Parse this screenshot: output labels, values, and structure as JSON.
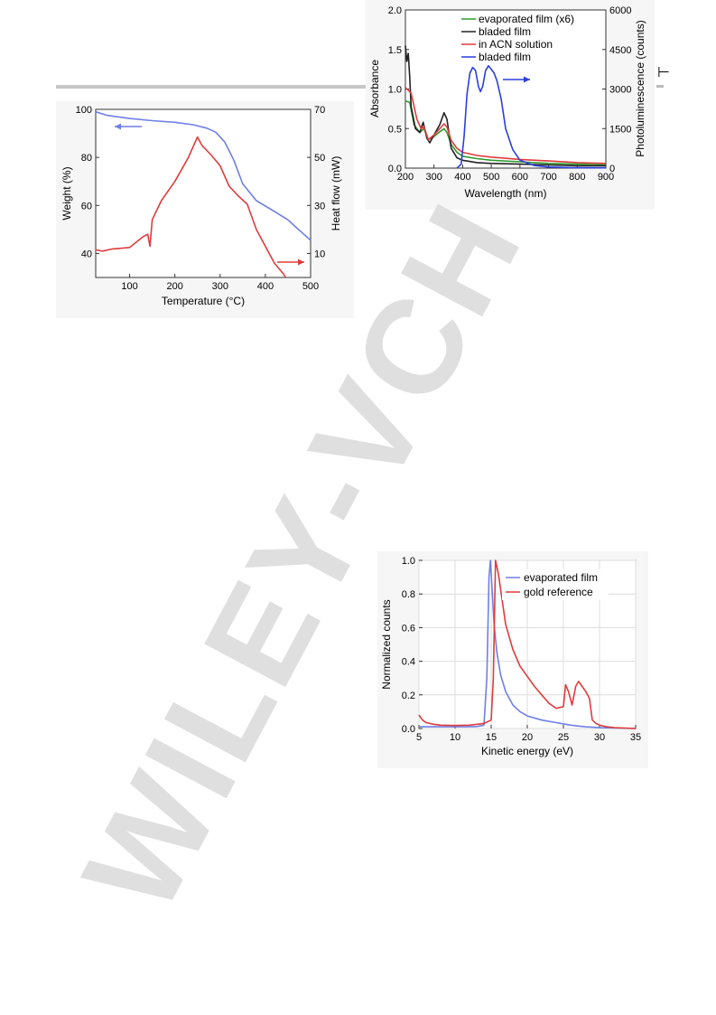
{
  "page": {
    "right_mark": "⊢"
  },
  "watermark": {
    "text": "WILEY-VCH",
    "color": "#d9d9d9"
  },
  "chart_data": [
    {
      "type": "line",
      "xlabel": "Temperature (°C)",
      "ylabel": "Weight (%)",
      "y2label": "Heat flow (mW)",
      "xlim": [
        25,
        500
      ],
      "ylim": [
        30,
        100
      ],
      "y2lim": [
        0,
        70
      ],
      "xticks": [
        100,
        200,
        300,
        400,
        500
      ],
      "yticks": [
        40,
        60,
        80,
        100
      ],
      "y2ticks": [
        10,
        30,
        50,
        70
      ],
      "grid": false,
      "series": [
        {
          "color": "#6f7fe6",
          "axis": "left",
          "x": [
            25,
            50,
            100,
            150,
            200,
            240,
            270,
            290,
            310,
            330,
            350,
            380,
            420,
            450,
            470,
            500
          ],
          "y": [
            99,
            97.5,
            96.2,
            95.3,
            94.6,
            93.6,
            92.2,
            90.5,
            86.5,
            79,
            69,
            62,
            57.5,
            54,
            50.5,
            45.5
          ]
        },
        {
          "color": "#e03c3c",
          "axis": "right",
          "x": [
            25,
            40,
            60,
            100,
            130,
            140,
            145,
            150,
            170,
            200,
            230,
            250,
            260,
            280,
            300,
            320,
            340,
            360,
            380,
            400,
            420,
            440,
            445
          ],
          "y": [
            11.5,
            11,
            11.8,
            12.5,
            17,
            18,
            13,
            24,
            32,
            40,
            50,
            58.5,
            55,
            51,
            46.5,
            38,
            34,
            30.5,
            20,
            13,
            6,
            1.5,
            0
          ]
        }
      ],
      "arrows": [
        {
          "axis": "left",
          "direction": "left",
          "color": "#6f7fe6"
        },
        {
          "axis": "right",
          "direction": "right",
          "color": "#e03c3c"
        }
      ]
    },
    {
      "type": "line",
      "xlabel": "Wavelength (nm)",
      "ylabel": "Absorbance",
      "y2label": "Photoluminescence (counts)",
      "xlim": [
        200,
        900
      ],
      "ylim": [
        0,
        2
      ],
      "y2lim": [
        0,
        6000
      ],
      "xticks": [
        200,
        300,
        400,
        500,
        600,
        700,
        800,
        900
      ],
      "yticks": [
        0.0,
        0.5,
        1.0,
        1.5,
        2.0
      ],
      "y2ticks": [
        0,
        1500,
        3000,
        4500,
        6000
      ],
      "legend": "top-right",
      "grid": false,
      "series": [
        {
          "name": "evaporated film (x6)",
          "color": "#2e9b2e",
          "axis": "left",
          "x": [
            200,
            215,
            230,
            250,
            265,
            280,
            300,
            320,
            335,
            345,
            360,
            380,
            400,
            450,
            500,
            600,
            700,
            800,
            900
          ],
          "y": [
            0.85,
            0.83,
            0.55,
            0.45,
            0.5,
            0.36,
            0.4,
            0.46,
            0.5,
            0.45,
            0.3,
            0.2,
            0.15,
            0.12,
            0.1,
            0.08,
            0.06,
            0.05,
            0.04
          ]
        },
        {
          "name": "bladed film",
          "color": "#222222",
          "axis": "left",
          "x": [
            200,
            205,
            210,
            215,
            220,
            235,
            250,
            262,
            275,
            285,
            300,
            320,
            335,
            345,
            360,
            380,
            400,
            450,
            500,
            600,
            700,
            800,
            900
          ],
          "y": [
            1.55,
            1.35,
            1.45,
            1.15,
            0.78,
            0.5,
            0.45,
            0.58,
            0.38,
            0.32,
            0.42,
            0.55,
            0.7,
            0.62,
            0.25,
            0.13,
            0.1,
            0.07,
            0.06,
            0.05,
            0.04,
            0.03,
            0.03
          ]
        },
        {
          "name": "in ACN solution",
          "color": "#e03c3c",
          "axis": "left",
          "x": [
            200,
            220,
            240,
            255,
            265,
            280,
            300,
            320,
            335,
            345,
            360,
            380,
            400,
            450,
            500,
            600,
            700,
            800,
            900
          ],
          "y": [
            1.02,
            0.95,
            0.62,
            0.5,
            0.52,
            0.36,
            0.42,
            0.5,
            0.56,
            0.52,
            0.35,
            0.25,
            0.2,
            0.16,
            0.14,
            0.11,
            0.09,
            0.07,
            0.06
          ]
        },
        {
          "name": "bladed film",
          "color": "#2a3fe0",
          "axis": "right",
          "x": [
            380,
            395,
            405,
            415,
            425,
            435,
            445,
            455,
            462,
            470,
            480,
            490,
            500,
            510,
            520,
            535,
            550,
            575,
            600,
            650,
            700,
            800,
            900
          ],
          "y": [
            0,
            150,
            1200,
            2800,
            3600,
            3820,
            3700,
            3100,
            2900,
            3100,
            3700,
            3880,
            3750,
            3600,
            3300,
            2600,
            1500,
            700,
            300,
            100,
            40,
            15,
            10
          ]
        }
      ],
      "arrows": [
        {
          "axis": "right",
          "direction": "right",
          "color": "#2a3fe0"
        }
      ]
    },
    {
      "type": "line",
      "xlabel": "Kinetic energy (eV)",
      "ylabel": "Normalized counts",
      "xlim": [
        5,
        35
      ],
      "ylim": [
        0,
        1
      ],
      "xticks": [
        5,
        10,
        15,
        20,
        25,
        30,
        35
      ],
      "yticks": [
        0.0,
        0.2,
        0.4,
        0.6,
        0.8,
        1.0
      ],
      "legend": "top-right",
      "grid": true,
      "series": [
        {
          "name": "evaporated film",
          "color": "#6f7fe6",
          "x": [
            5,
            8,
            10,
            12,
            13,
            14,
            14.4,
            14.7,
            14.9,
            15.1,
            15.4,
            15.8,
            16.3,
            17,
            18,
            19,
            20,
            22,
            24,
            26,
            28,
            30,
            35
          ],
          "y": [
            0.01,
            0.01,
            0.01,
            0.01,
            0.012,
            0.02,
            0.3,
            0.9,
            1.0,
            0.85,
            0.62,
            0.45,
            0.32,
            0.22,
            0.14,
            0.1,
            0.075,
            0.05,
            0.035,
            0.02,
            0.01,
            0.005,
            0.0
          ]
        },
        {
          "name": "gold reference",
          "color": "#e03c3c",
          "x": [
            5,
            5.5,
            6,
            7,
            8,
            10,
            12,
            14,
            15,
            15.3,
            15.6,
            16,
            17,
            18,
            19,
            20,
            21,
            22,
            23,
            24,
            25,
            25.3,
            25.7,
            26.2,
            26.7,
            27.1,
            27.6,
            28.1,
            28.6,
            29,
            29.5,
            30,
            31,
            32,
            35
          ],
          "y": [
            0.08,
            0.05,
            0.035,
            0.025,
            0.02,
            0.018,
            0.02,
            0.03,
            0.05,
            0.3,
            1.0,
            0.92,
            0.62,
            0.47,
            0.37,
            0.31,
            0.25,
            0.2,
            0.15,
            0.12,
            0.13,
            0.26,
            0.22,
            0.14,
            0.25,
            0.28,
            0.25,
            0.22,
            0.18,
            0.05,
            0.03,
            0.02,
            0.01,
            0.005,
            0.0
          ]
        }
      ]
    }
  ]
}
